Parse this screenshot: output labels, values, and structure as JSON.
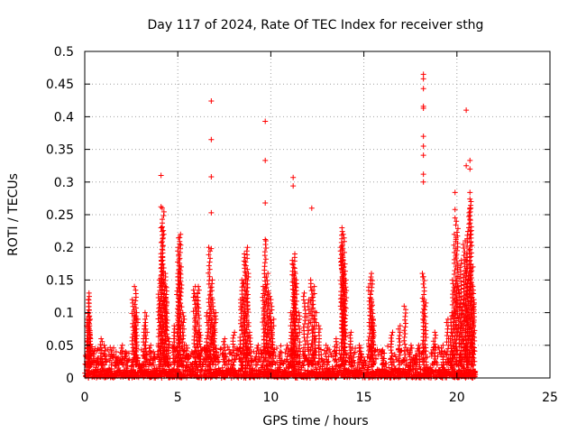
{
  "chart_data": {
    "type": "scatter",
    "title": "Day 117 of 2024, Rate Of TEC Index for receiver sthg",
    "xlabel": "GPS time / hours",
    "ylabel": "ROTI / TECUs",
    "xlim": [
      0,
      25
    ],
    "ylim": [
      0,
      0.5
    ],
    "x_ticks": [
      0,
      5,
      10,
      15,
      20,
      25
    ],
    "x_tick_labels": [
      "0",
      "5",
      "10",
      "15",
      "20",
      "25"
    ],
    "y_ticks": [
      0,
      0.05,
      0.1,
      0.15,
      0.2,
      0.25,
      0.3,
      0.35,
      0.4,
      0.45,
      0.5
    ],
    "y_tick_labels": [
      "0",
      "0.05",
      "0.1",
      "0.15",
      "0.2",
      "0.25",
      "0.3",
      "0.35",
      "0.4",
      "0.45",
      "0.5"
    ],
    "grid": true,
    "marker": "+",
    "color": "#ff0000",
    "background_points": [
      [
        0.1,
        0.02
      ],
      [
        0.15,
        0.09
      ],
      [
        0.2,
        0.13
      ],
      [
        0.22,
        0.12
      ],
      [
        0.25,
        0.1
      ],
      [
        0.3,
        0.07
      ],
      [
        0.5,
        0.04
      ],
      [
        0.7,
        0.03
      ],
      [
        0.9,
        0.06
      ],
      [
        1.1,
        0.05
      ],
      [
        1.4,
        0.04
      ],
      [
        1.7,
        0.03
      ],
      [
        2.0,
        0.05
      ],
      [
        2.2,
        0.04
      ],
      [
        2.6,
        0.12
      ],
      [
        2.7,
        0.14
      ],
      [
        2.75,
        0.1
      ],
      [
        2.8,
        0.09
      ],
      [
        3.2,
        0.08
      ],
      [
        3.3,
        0.1
      ],
      [
        3.5,
        0.05
      ],
      [
        3.7,
        0.04
      ],
      [
        4.0,
        0.15
      ],
      [
        4.1,
        0.18
      ],
      [
        4.15,
        0.23
      ],
      [
        4.2,
        0.26
      ],
      [
        4.3,
        0.14
      ],
      [
        4.35,
        0.16
      ],
      [
        4.4,
        0.12
      ],
      [
        4.5,
        0.06
      ],
      [
        4.8,
        0.08
      ],
      [
        5.0,
        0.16
      ],
      [
        5.05,
        0.2
      ],
      [
        5.1,
        0.22
      ],
      [
        5.15,
        0.17
      ],
      [
        5.3,
        0.1
      ],
      [
        5.5,
        0.05
      ],
      [
        5.9,
        0.14
      ],
      [
        6.0,
        0.13
      ],
      [
        6.1,
        0.14
      ],
      [
        6.2,
        0.07
      ],
      [
        6.5,
        0.05
      ],
      [
        6.6,
        0.1
      ],
      [
        6.7,
        0.2
      ],
      [
        6.8,
        0.15
      ],
      [
        6.9,
        0.12
      ],
      [
        7.0,
        0.1
      ],
      [
        7.5,
        0.06
      ],
      [
        8.0,
        0.07
      ],
      [
        8.4,
        0.12
      ],
      [
        8.5,
        0.15
      ],
      [
        8.6,
        0.19
      ],
      [
        8.7,
        0.2
      ],
      [
        8.75,
        0.16
      ],
      [
        8.9,
        0.07
      ],
      [
        9.3,
        0.05
      ],
      [
        9.6,
        0.14
      ],
      [
        9.7,
        0.21
      ],
      [
        9.8,
        0.16
      ],
      [
        9.9,
        0.13
      ],
      [
        10.0,
        0.12
      ],
      [
        10.1,
        0.09
      ],
      [
        10.5,
        0.04
      ],
      [
        10.9,
        0.05
      ],
      [
        11.1,
        0.1
      ],
      [
        11.2,
        0.18
      ],
      [
        11.25,
        0.19
      ],
      [
        11.3,
        0.16
      ],
      [
        11.35,
        0.15
      ],
      [
        11.5,
        0.1
      ],
      [
        11.8,
        0.13
      ],
      [
        12.0,
        0.12
      ],
      [
        12.2,
        0.15
      ],
      [
        12.3,
        0.14
      ],
      [
        12.4,
        0.1
      ],
      [
        12.6,
        0.08
      ],
      [
        13.0,
        0.05
      ],
      [
        13.5,
        0.06
      ],
      [
        13.8,
        0.2
      ],
      [
        13.85,
        0.23
      ],
      [
        13.9,
        0.22
      ],
      [
        13.95,
        0.18
      ],
      [
        14.0,
        0.15
      ],
      [
        14.3,
        0.07
      ],
      [
        14.8,
        0.05
      ],
      [
        15.3,
        0.15
      ],
      [
        15.4,
        0.16
      ],
      [
        15.45,
        0.12
      ],
      [
        15.5,
        0.09
      ],
      [
        16.0,
        0.04
      ],
      [
        16.5,
        0.07
      ],
      [
        16.9,
        0.08
      ],
      [
        17.2,
        0.11
      ],
      [
        17.5,
        0.05
      ],
      [
        17.8,
        0.03
      ],
      [
        18.0,
        0.05
      ],
      [
        18.2,
        0.16
      ],
      [
        18.3,
        0.12
      ],
      [
        18.8,
        0.07
      ],
      [
        19.2,
        0.05
      ],
      [
        19.5,
        0.09
      ],
      [
        19.7,
        0.1
      ],
      [
        19.8,
        0.15
      ],
      [
        19.9,
        0.22
      ],
      [
        20.0,
        0.24
      ],
      [
        20.1,
        0.14
      ],
      [
        20.2,
        0.18
      ],
      [
        20.3,
        0.12
      ],
      [
        20.4,
        0.21
      ],
      [
        20.5,
        0.19
      ],
      [
        20.55,
        0.16
      ],
      [
        20.6,
        0.23
      ],
      [
        20.7,
        0.27
      ],
      [
        20.75,
        0.26
      ],
      [
        20.8,
        0.17
      ],
      [
        20.85,
        0.14
      ],
      [
        20.9,
        0.12
      ]
    ],
    "spike_points": [
      [
        4.1,
        0.31
      ],
      [
        4.1,
        0.262
      ],
      [
        4.1,
        0.23
      ],
      [
        4.1,
        0.185
      ],
      [
        5.1,
        0.215
      ],
      [
        5.1,
        0.205
      ],
      [
        6.8,
        0.424
      ],
      [
        6.8,
        0.365
      ],
      [
        6.8,
        0.308
      ],
      [
        6.8,
        0.253
      ],
      [
        6.8,
        0.198
      ],
      [
        9.7,
        0.393
      ],
      [
        9.7,
        0.333
      ],
      [
        9.7,
        0.268
      ],
      [
        9.7,
        0.212
      ],
      [
        11.2,
        0.307
      ],
      [
        11.2,
        0.294
      ],
      [
        12.2,
        0.26
      ],
      [
        18.2,
        0.465
      ],
      [
        18.2,
        0.458
      ],
      [
        18.2,
        0.443
      ],
      [
        18.2,
        0.416
      ],
      [
        18.2,
        0.413
      ],
      [
        18.2,
        0.37
      ],
      [
        18.2,
        0.355
      ],
      [
        18.2,
        0.341
      ],
      [
        18.2,
        0.312
      ],
      [
        18.2,
        0.3
      ],
      [
        18.2,
        0.155
      ],
      [
        20.5,
        0.41
      ],
      [
        20.5,
        0.325
      ],
      [
        20.7,
        0.333
      ],
      [
        20.7,
        0.32
      ],
      [
        20.7,
        0.284
      ],
      [
        20.7,
        0.274
      ],
      [
        20.7,
        0.26
      ],
      [
        19.9,
        0.284
      ],
      [
        19.9,
        0.258
      ],
      [
        19.9,
        0.245
      ]
    ],
    "dense_band": {
      "x_range": [
        0.0,
        21.0
      ],
      "y_range": [
        0.0,
        0.05
      ]
    }
  }
}
